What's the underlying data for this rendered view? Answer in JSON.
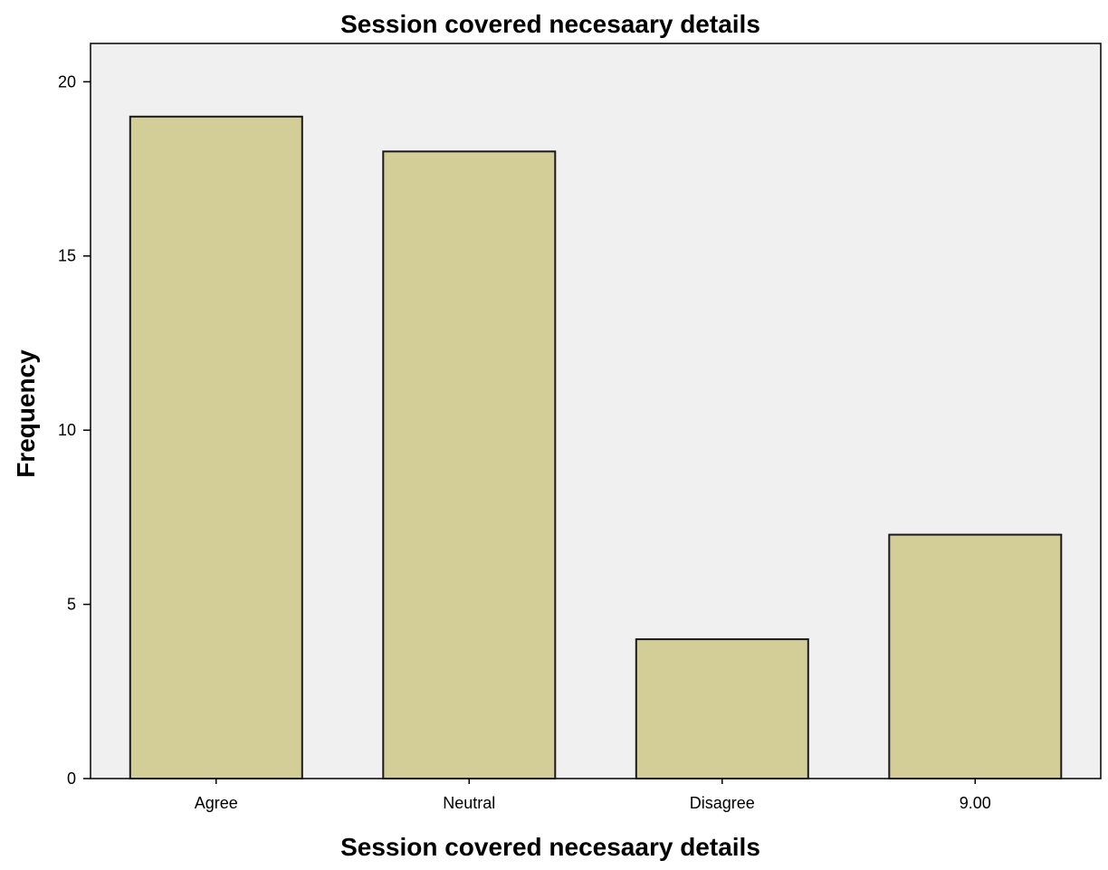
{
  "chart_data": {
    "type": "bar",
    "title": "Session covered necesaary details",
    "xlabel": "Session covered necesaary details",
    "ylabel": "Frequency",
    "categories": [
      "Agree",
      "Neutral",
      "Disagree",
      "9.00"
    ],
    "values": [
      19,
      18,
      4,
      7
    ],
    "ylim": [
      0,
      21.1
    ],
    "yticks": [
      "0",
      "5",
      "10",
      "15",
      "20"
    ],
    "grid": false,
    "legend": "none",
    "colors": {
      "bar_fill": "#D3CE97",
      "bar_stroke": "#1a1a1a",
      "plot_background": "#F0F0F0",
      "frame": "#000000"
    }
  }
}
